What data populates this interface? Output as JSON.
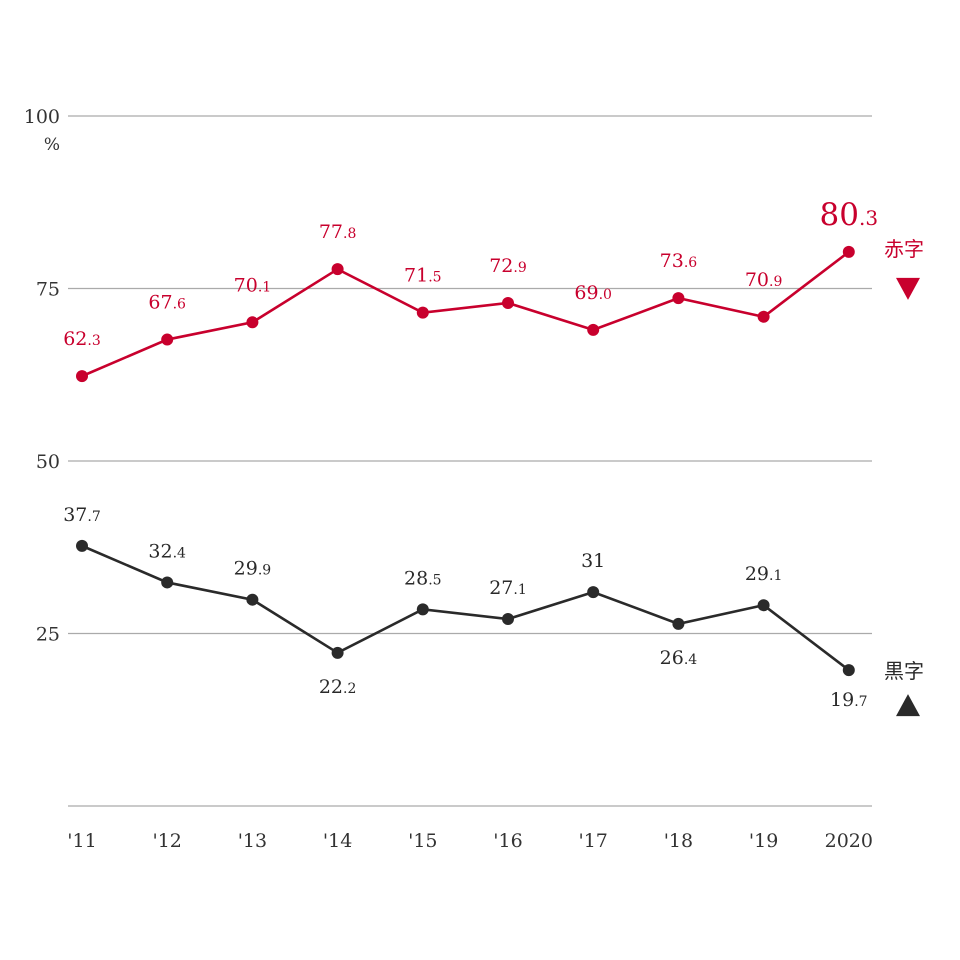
{
  "chart_data": {
    "type": "line",
    "categories": [
      "'11",
      "'12",
      "'13",
      "'14",
      "'15",
      "'16",
      "'17",
      "'18",
      "'19",
      "2020"
    ],
    "series": [
      {
        "name": "赤字",
        "color": "#c8002d",
        "marker": "down-triangle",
        "values": [
          62.3,
          67.6,
          70.1,
          77.8,
          71.5,
          72.9,
          69.0,
          73.6,
          70.9,
          80.3
        ],
        "labels": [
          "62.3",
          "67.6",
          "70.1",
          "77.8",
          "71.5",
          "72.9",
          "69.0",
          "73.6",
          "70.9",
          "80.3"
        ]
      },
      {
        "name": "黒字",
        "color": "#2a2a2a",
        "marker": "up-triangle",
        "values": [
          37.7,
          32.4,
          29.9,
          22.2,
          28.5,
          27.1,
          31,
          26.4,
          29.1,
          19.7
        ],
        "labels": [
          "37.7",
          "32.4",
          "29.9",
          "22.2",
          "28.5",
          "27.1",
          "31",
          "26.4",
          "29.1",
          "19.7"
        ]
      }
    ],
    "yticks": [
      "100",
      "75",
      "50",
      "25"
    ],
    "ytick_values": [
      100,
      75,
      50,
      25
    ],
    "yunit": "%",
    "ylim": [
      0,
      100
    ],
    "grid": true,
    "gridline_color": "#aaaaaa",
    "legend": "inline-right"
  }
}
